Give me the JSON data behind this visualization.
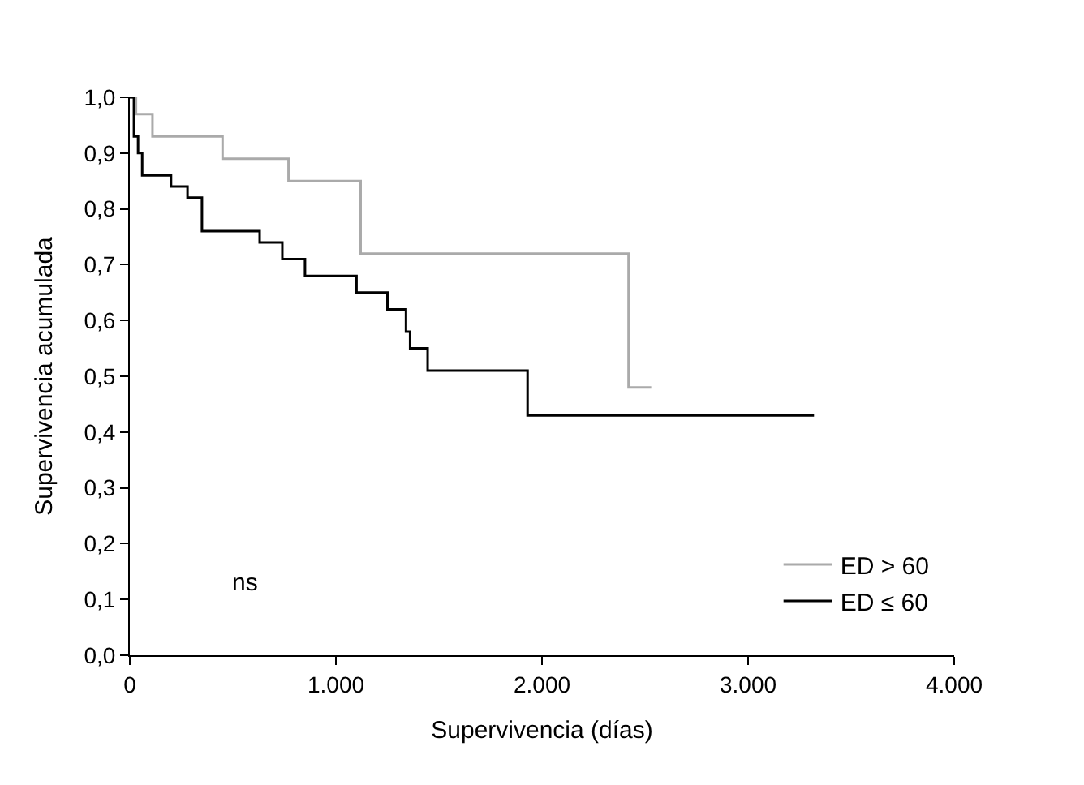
{
  "chart_data": {
    "type": "step",
    "xlabel": "Supervivencia (días)",
    "ylabel": "Supervivencia acumulada",
    "xlim": [
      0,
      4000
    ],
    "xticks": [
      0,
      {
        "value": 1000,
        "label": "1.000"
      },
      {
        "value": 2000,
        "label": "2.000"
      },
      {
        "value": 3000,
        "label": "3.000"
      },
      {
        "value": 4000,
        "label": "4.000"
      }
    ],
    "ylim": [
      0,
      1
    ],
    "yticks": [
      {
        "value": 0,
        "label": "0,0"
      },
      {
        "value": 0.1,
        "label": "0,1"
      },
      {
        "value": 0.2,
        "label": "0,2"
      },
      {
        "value": 0.3,
        "label": "0,3"
      },
      {
        "value": 0.4,
        "label": "0,4"
      },
      {
        "value": 0.5,
        "label": "0,5"
      },
      {
        "value": 0.6,
        "label": "0,6"
      },
      {
        "value": 0.7,
        "label": "0,7"
      },
      {
        "value": 0.8,
        "label": "0,8"
      },
      {
        "value": 0.9,
        "label": "0,9"
      },
      {
        "value": 1,
        "label": "1,0"
      }
    ],
    "legend": "bottom right",
    "line_style": "solid",
    "annotations": [
      "ns"
    ],
    "series": [
      {
        "name": "ED > 60",
        "color": "#aaaaaa",
        "x": [
          0,
          30,
          110,
          450,
          770,
          1120,
          2420,
          2530
        ],
        "values": [
          1.0,
          0.97,
          0.93,
          0.89,
          0.85,
          0.72,
          0.48,
          0.48
        ]
      },
      {
        "name": "ED ≤ 60",
        "color": "#000000",
        "x": [
          0,
          20,
          40,
          60,
          200,
          280,
          350,
          630,
          740,
          850,
          1100,
          1250,
          1340,
          1360,
          1445,
          1930,
          3320
        ],
        "values": [
          1.0,
          0.93,
          0.9,
          0.86,
          0.84,
          0.82,
          0.76,
          0.74,
          0.71,
          0.68,
          0.65,
          0.62,
          0.58,
          0.55,
          0.51,
          0.43,
          0.43
        ]
      }
    ]
  }
}
